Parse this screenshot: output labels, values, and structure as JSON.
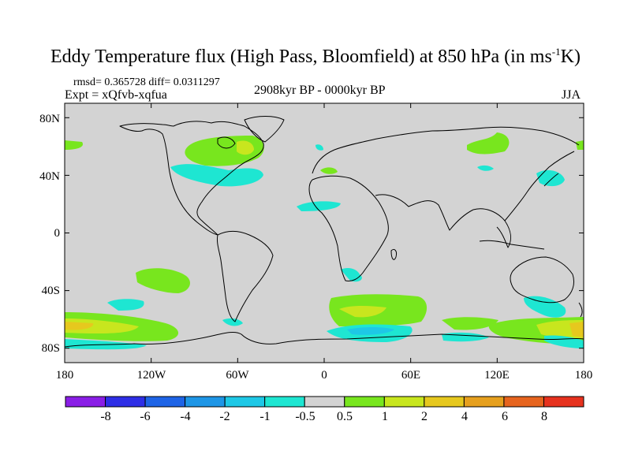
{
  "title": {
    "main": "Eddy Temperature flux (High Pass, Bloomfield) at 850 hPa (in ms",
    "sup": "-1",
    "end": "K)"
  },
  "stats": "rmsd= 0.365728 diff= 0.0311297",
  "expt": "Expt = xQfvb-xqfua",
  "period": "2908kyr BP - 0000kyr BP",
  "season": "JJA",
  "axes": {
    "lon_range": [
      -180,
      180
    ],
    "lat_range": [
      -90,
      90
    ],
    "y_ticks": [
      {
        "value": 80,
        "label": "80N"
      },
      {
        "value": 40,
        "label": "40N"
      },
      {
        "value": 0,
        "label": "0"
      },
      {
        "value": -40,
        "label": "40S"
      },
      {
        "value": -80,
        "label": "80S"
      }
    ],
    "x_ticks": [
      {
        "value": -180,
        "label": "180"
      },
      {
        "value": -120,
        "label": "120W"
      },
      {
        "value": -60,
        "label": "60W"
      },
      {
        "value": 0,
        "label": "0"
      },
      {
        "value": 60,
        "label": "60E"
      },
      {
        "value": 120,
        "label": "120E"
      },
      {
        "value": 180,
        "label": "180"
      }
    ]
  },
  "colorbar": {
    "levels": [
      "-8",
      "-6",
      "-4",
      "-2",
      "-1",
      "-0.5",
      "0.5",
      "1",
      "2",
      "4",
      "6",
      "8"
    ],
    "colors": [
      "#8a1ee6",
      "#2e2ee6",
      "#1e64e6",
      "#1e96e6",
      "#1ec8e6",
      "#1ee6d2",
      "#d3d3d3",
      "#78e61e",
      "#c8e61e",
      "#e6c81e",
      "#e6a01e",
      "#e6641e",
      "#e6321e"
    ]
  },
  "background_color": "#d3d3d3"
}
